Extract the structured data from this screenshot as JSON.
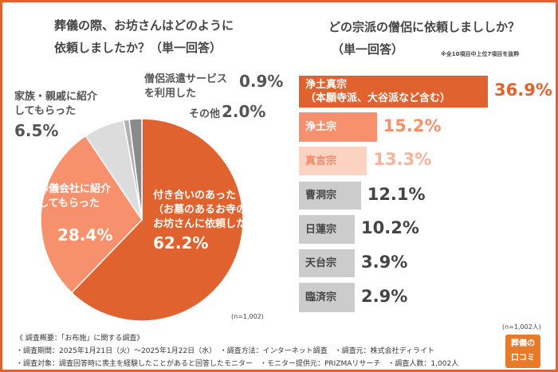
{
  "chart_data": [
    {
      "type": "pie",
      "title": "葬儀の際、お坊さんはどのように依頼しましたか？（単一回答）",
      "slices": [
        {
          "label": "付き合いのあった（お墓のあるお寺の）お坊さんに依頼した",
          "value": 62.2,
          "value_label": "62.2%",
          "color": "#e0622f"
        },
        {
          "label": "葬儀会社に紹介してもらった",
          "value": 28.4,
          "value_label": "28.4%",
          "color": "#f7906c"
        },
        {
          "label": "家族・親戚に紹介してもらった",
          "value": 6.5,
          "value_label": "6.5%",
          "color": "#dcdcdc"
        },
        {
          "label": "僧侶派遣サービスを利用した",
          "value": 0.9,
          "value_label": "0.9%",
          "color": "#b0b0b0"
        },
        {
          "label": "その他",
          "value": 2.0,
          "value_label": "2.0%",
          "color": "#8a8a8a"
        }
      ],
      "note": "(n=1,002)"
    },
    {
      "type": "bar",
      "orientation": "horizontal",
      "title": "どの宗派の僧侶に依頼しまししか？（単一回答）",
      "subtitle": "※全10項目中上位7項目を抜粋",
      "categories": [
        "浄土真宗（本願寺派、大谷派など含む）",
        "浄土宗",
        "真言宗",
        "曹洞宗",
        "日蓮宗",
        "天台宗",
        "臨済宗"
      ],
      "label_lines": [
        [
          "浄土真宗",
          "（本願寺派、大谷派など含む）"
        ],
        [
          "浄土宗"
        ],
        [
          "真言宗"
        ],
        [
          "曹洞宗"
        ],
        [
          "日蓮宗"
        ],
        [
          "天台宗"
        ],
        [
          "臨済宗"
        ]
      ],
      "values": [
        36.9,
        15.2,
        13.3,
        12.1,
        10.2,
        3.9,
        2.9
      ],
      "value_labels": [
        "36.9%",
        "15.2%",
        "13.3%",
        "12.1%",
        "10.2%",
        "3.9%",
        "2.9%"
      ],
      "bar_colors": [
        "#e0622f",
        "#f7906c",
        "#fcd3c3",
        "#cccccc",
        "#cccccc",
        "#cccccc",
        "#cccccc"
      ],
      "value_colors": [
        "#e0622f",
        "#f7906c",
        "#f5b49a",
        "#444444",
        "#444444",
        "#444444",
        "#444444"
      ],
      "label_colors": [
        "#ffffff",
        "#ffffff",
        "#f08a64",
        "#444444",
        "#444444",
        "#444444",
        "#444444"
      ],
      "note": "(n=1,002人)"
    }
  ],
  "footer": {
    "line1": "《 調査概要：「お布施」に関する調査》",
    "line2": "・調査期間：2025年1月21日（火）～2025年1月22日（水）　・調査方法：インターネット調査　・調査元：株式会社ディライト",
    "line3": "・調査対象：調査回答時に喪主を経験したことがあると回答したモニター　・モニター提供元：PRIZMAリサーチ　・調査人数：1,002人"
  },
  "logo": {
    "text": "葬儀の口コミ"
  },
  "accent": "#e0622f"
}
